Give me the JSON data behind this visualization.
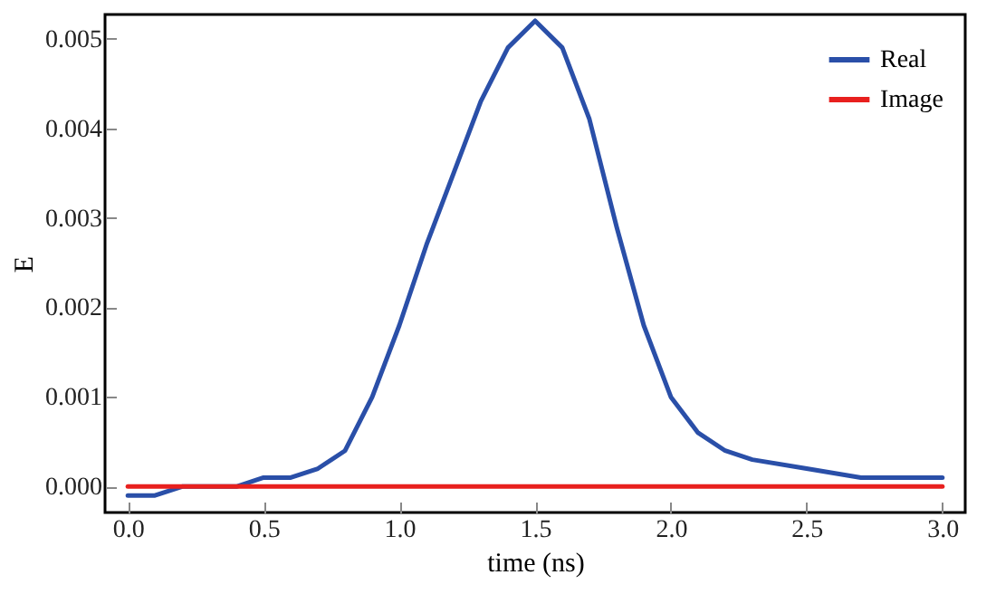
{
  "chart_data": {
    "type": "line",
    "xlabel": "time (ns)",
    "ylabel": "E",
    "x": [
      0.0,
      0.1,
      0.2,
      0.3,
      0.4,
      0.5,
      0.6,
      0.7,
      0.8,
      0.9,
      1.0,
      1.1,
      1.2,
      1.3,
      1.4,
      1.5,
      1.6,
      1.7,
      1.8,
      1.9,
      2.0,
      2.1,
      2.2,
      2.3,
      2.5,
      2.7,
      3.0
    ],
    "series": [
      {
        "name": "Real",
        "color": "#2a4fa8",
        "values": [
          -0.0001,
          -0.0001,
          0,
          0,
          0,
          0.0001,
          0.0001,
          0.0002,
          0.0004,
          0.001,
          0.0018,
          0.0027,
          0.0035,
          0.0043,
          0.0049,
          0.0052,
          0.0049,
          0.0041,
          0.0029,
          0.0018,
          0.001,
          0.0006,
          0.0004,
          0.0003,
          0.0002,
          0.0001,
          0.0001
        ]
      },
      {
        "name": "Image",
        "color": "#e8201e",
        "values": [
          0,
          0,
          0,
          0,
          0,
          0,
          0,
          0,
          0,
          0,
          0,
          0,
          0,
          0,
          0,
          0,
          0,
          0,
          0,
          0,
          0,
          0,
          0,
          0,
          0,
          0,
          0
        ]
      }
    ],
    "xlim": [
      -0.084,
      3.084
    ],
    "ylim": [
      -0.00029,
      0.00527
    ],
    "xticks": [
      {
        "value": 0,
        "label": "0.0"
      },
      {
        "value": 0.5,
        "label": "0.5"
      },
      {
        "value": 1,
        "label": "1.0"
      },
      {
        "value": 1.5,
        "label": "1.5"
      },
      {
        "value": 2,
        "label": "2.0"
      },
      {
        "value": 2.5,
        "label": "2.5"
      },
      {
        "value": 3,
        "label": "3.0"
      }
    ],
    "yticks": [
      {
        "value": 0,
        "label": "0.000"
      },
      {
        "value": 0.001,
        "label": "0.001"
      },
      {
        "value": 0.002,
        "label": "0.002"
      },
      {
        "value": 0.003,
        "label": "0.003"
      },
      {
        "value": 0.004,
        "label": "0.004"
      },
      {
        "value": 0.005,
        "label": "0.005"
      }
    ],
    "legend": "top right",
    "grid": false,
    "line_style": "solid",
    "marker": "none"
  }
}
